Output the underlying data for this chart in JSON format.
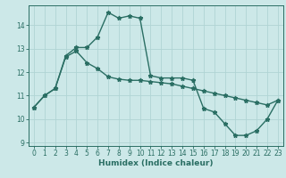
{
  "line1_x": [
    0,
    1,
    2,
    3,
    4,
    5,
    6,
    7,
    8,
    9,
    10,
    11,
    12,
    13,
    14,
    15,
    16,
    17,
    18,
    19,
    20,
    21,
    22,
    23
  ],
  "line1_y": [
    10.5,
    11.0,
    11.3,
    12.7,
    13.05,
    13.05,
    13.5,
    14.55,
    14.3,
    14.4,
    14.3,
    11.85,
    11.75,
    11.75,
    11.75,
    11.65,
    10.45,
    10.3,
    9.8,
    9.3,
    9.3,
    9.5,
    10.0,
    10.8
  ],
  "line2_x": [
    0,
    1,
    2,
    3,
    4,
    5,
    6,
    7,
    8,
    9,
    10,
    11,
    12,
    13,
    14,
    15,
    16,
    17,
    18,
    19,
    20,
    21,
    22,
    23
  ],
  "line2_y": [
    10.5,
    11.0,
    11.3,
    12.65,
    12.9,
    12.4,
    12.15,
    11.8,
    11.7,
    11.65,
    11.65,
    11.6,
    11.55,
    11.5,
    11.4,
    11.3,
    11.2,
    11.1,
    11.0,
    10.9,
    10.8,
    10.7,
    10.6,
    10.8
  ],
  "color": "#2a6e63",
  "bg_color": "#cce8e8",
  "grid_color": "#b0d4d4",
  "xlabel": "Humidex (Indice chaleur)",
  "xlim": [
    -0.5,
    23.5
  ],
  "ylim": [
    8.85,
    14.85
  ],
  "yticks": [
    9,
    10,
    11,
    12,
    13,
    14
  ],
  "xticks": [
    0,
    1,
    2,
    3,
    4,
    5,
    6,
    7,
    8,
    9,
    10,
    11,
    12,
    13,
    14,
    15,
    16,
    17,
    18,
    19,
    20,
    21,
    22,
    23
  ],
  "marker": "*",
  "markersize": 3.5,
  "linewidth": 1.0,
  "tick_fontsize": 5.5,
  "xlabel_fontsize": 6.5
}
